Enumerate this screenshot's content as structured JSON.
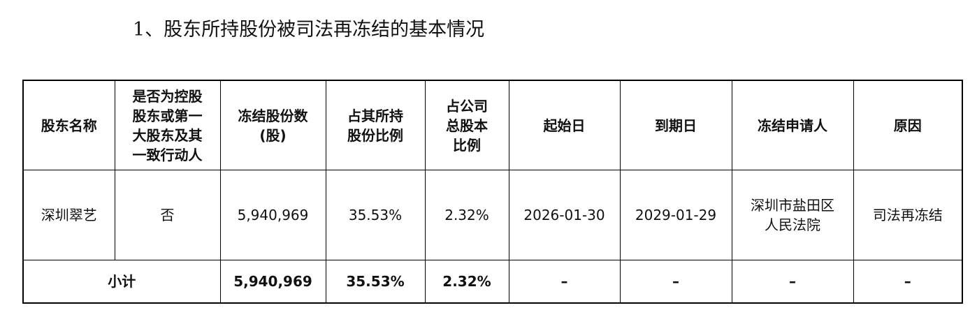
{
  "heading": "1、股东所持股份被司法再冻结的基本情况",
  "table": {
    "header": [
      [
        "股东名称"
      ],
      [
        "是否为控股",
        "股东或第一",
        "大股东及其",
        "一致行动人"
      ],
      [
        "冻结股份数",
        "(股)"
      ],
      [
        "占其所持",
        "股份比例"
      ],
      [
        "占公司",
        "总股本",
        "比例"
      ],
      [
        "起始日"
      ],
      [
        "到期日"
      ],
      [
        "冻结申请人"
      ],
      [
        "原因"
      ]
    ],
    "rows": [
      [
        [
          "深圳翠艺"
        ],
        [
          "否"
        ],
        [
          "5,940,969"
        ],
        [
          "35.53%"
        ],
        [
          "2.32%"
        ],
        [
          "2026-01-30"
        ],
        [
          "2029-01-29"
        ],
        [
          "深圳市盐田区",
          "人民法院"
        ],
        [
          "司法再冻结"
        ]
      ]
    ],
    "subtotal": [
      "小计",
      "5,940,969",
      "35.53%",
      "2.32%",
      "–",
      "–",
      "–",
      "–"
    ]
  }
}
